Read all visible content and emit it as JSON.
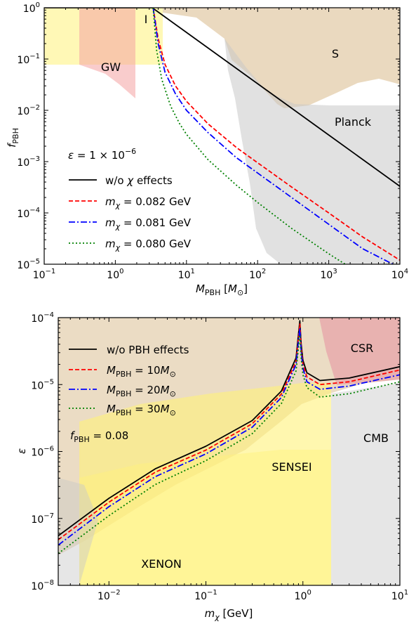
{
  "chart_data": [
    {
      "type": "line",
      "xscale": "log",
      "yscale": "log",
      "xlim": [
        0.1,
        10000
      ],
      "ylim": [
        1e-05,
        1
      ],
      "xlabel": "M_PBH [M_⊙]",
      "ylabel": "f_PBH",
      "xtick_labels": [
        "10^-1",
        "10^0",
        "10^1",
        "10^2",
        "10^3",
        "10^4"
      ],
      "ytick_labels": [
        "10^-5",
        "10^-4",
        "10^-3",
        "10^-2",
        "10^-1",
        "10^0"
      ],
      "annotation": "ε = 1 × 10^-6",
      "legend_placement": "lower-left",
      "regions": [
        {
          "name": "GW",
          "color": "#f4a3a3"
        },
        {
          "name": "I",
          "color": "#fff27a"
        },
        {
          "name": "S",
          "color": "#d8b98a"
        },
        {
          "name": "Planck",
          "color": "#c8c8c8"
        }
      ],
      "series": [
        {
          "name": "w/o χ effects",
          "color": "#000000",
          "style": "solid",
          "x": [
            0.1,
            3.3,
            10,
            100,
            1000,
            10000
          ],
          "y": [
            1,
            1,
            0.33,
            0.033,
            0.0033,
            0.00033
          ]
        },
        {
          "name": "m_χ = 0.082 GeV",
          "color": "#ff0000",
          "style": "dashed",
          "x": [
            3.4,
            4,
            5,
            7,
            10,
            20,
            50,
            100,
            300,
            1000,
            3000,
            10000
          ],
          "y": [
            1,
            0.25,
            0.078,
            0.03,
            0.015,
            0.0055,
            0.0019,
            0.00095,
            0.00032,
            0.0001,
            3.4e-05,
            1.2e-05
          ]
        },
        {
          "name": "m_χ = 0.081 GeV",
          "color": "#0000ff",
          "style": "dashdot",
          "x": [
            3.4,
            4,
            5,
            7,
            10,
            20,
            50,
            100,
            300,
            1000,
            3000,
            8000
          ],
          "y": [
            1,
            0.2,
            0.055,
            0.021,
            0.01,
            0.0037,
            0.0012,
            0.0006,
            0.0002,
            6e-05,
            2e-05,
            1e-05
          ]
        },
        {
          "name": "m_χ = 0.080 GeV",
          "color": "#008000",
          "style": "dotted",
          "x": [
            3.4,
            3.8,
            4.5,
            6,
            8,
            10,
            20,
            50,
            100,
            300,
            1000,
            1700
          ],
          "y": [
            1,
            0.15,
            0.04,
            0.012,
            0.0055,
            0.0034,
            0.0011,
            0.00035,
            0.00016,
            5e-05,
            1.6e-05,
            1e-05
          ]
        }
      ]
    },
    {
      "type": "line",
      "xscale": "log",
      "yscale": "log",
      "xlim": [
        0.003,
        10
      ],
      "ylim": [
        1e-08,
        0.0001
      ],
      "xlabel": "m_χ [GeV]",
      "ylabel": "ε",
      "xtick_labels": [
        "10^-2",
        "10^-1",
        "10^0",
        "10^1"
      ],
      "ytick_labels": [
        "10^-8",
        "10^-7",
        "10^-6",
        "10^-5",
        "10^-4"
      ],
      "annotation": "f_PBH = 0.08",
      "legend_placement": "upper-left",
      "regions": [
        {
          "name": "CSR",
          "color": "#e7a4aa"
        },
        {
          "name": "CMB",
          "color": "#c8c8c8"
        },
        {
          "name": "SENSEI",
          "color": "#fff27a"
        },
        {
          "name": "XENON",
          "color": "#fff27a"
        }
      ],
      "series": [
        {
          "name": "w/o PBH effects",
          "color": "#000000",
          "style": "solid",
          "x": [
            0.003,
            0.01,
            0.03,
            0.1,
            0.3,
            0.6,
            0.85,
            0.93,
            0.96,
            1.0,
            1.1,
            1.5,
            3,
            10
          ],
          "y": [
            5.5e-08,
            2e-07,
            5.5e-07,
            1.2e-06,
            2.9e-06,
            8e-06,
            2.5e-05,
            9e-05,
            4e-05,
            2.3e-05,
            1.5e-05,
            1.15e-05,
            1.25e-05,
            1.85e-05
          ]
        },
        {
          "name": "M_PBH = 10M_⊙",
          "color": "#ff0000",
          "style": "dashed",
          "x": [
            0.003,
            0.01,
            0.03,
            0.1,
            0.3,
            0.6,
            0.85,
            0.93,
            0.96,
            1.0,
            1.1,
            1.5,
            3,
            10
          ],
          "y": [
            4.8e-08,
            1.75e-07,
            4.9e-07,
            1.05e-06,
            2.6e-06,
            7.2e-06,
            2.2e-05,
            8e-05,
            3.5e-05,
            2e-05,
            1.3e-05,
            1e-05,
            1.1e-05,
            1.65e-05
          ]
        },
        {
          "name": "M_PBH = 20M_⊙",
          "color": "#0000ff",
          "style": "dashdot",
          "x": [
            0.003,
            0.01,
            0.03,
            0.1,
            0.3,
            0.6,
            0.85,
            0.93,
            0.96,
            1.0,
            1.1,
            1.5,
            3,
            10
          ],
          "y": [
            4e-08,
            1.5e-07,
            4.2e-07,
            9.2e-07,
            2.3e-06,
            6.4e-06,
            2e-05,
            7e-05,
            3.1e-05,
            1.75e-05,
            1.1e-05,
            8.5e-06,
            9.5e-06,
            1.4e-05
          ]
        },
        {
          "name": "M_PBH = 30M_⊙",
          "color": "#008000",
          "style": "dotted",
          "x": [
            0.003,
            0.01,
            0.03,
            0.1,
            0.3,
            0.6,
            0.85,
            0.93,
            0.96,
            1.0,
            1.1,
            1.5,
            3,
            10
          ],
          "y": [
            3e-08,
            1.1e-07,
            3.2e-07,
            7.3e-07,
            1.85e-06,
            5.2e-06,
            1.6e-05,
            5.5e-05,
            2.5e-05,
            1.4e-05,
            9e-06,
            6.5e-06,
            7.3e-06,
            1.1e-05
          ]
        }
      ]
    }
  ]
}
